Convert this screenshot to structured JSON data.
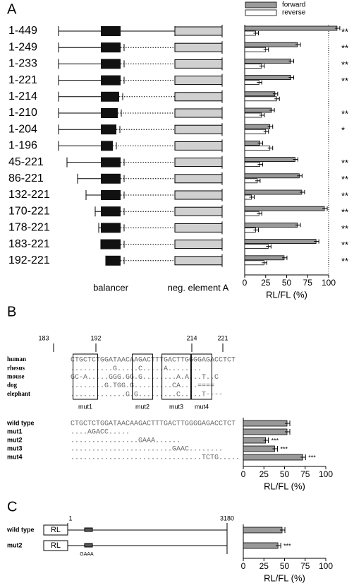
{
  "panels": {
    "A": {
      "letter": "A",
      "balancer": "balancer",
      "element": "neg. element A"
    },
    "B": {
      "letter": "B",
      "positions": [
        "183",
        "192",
        "214",
        "221"
      ],
      "alignment": [
        {
          "species": "human",
          "seq": "CTGCTCTGGATAACAAGACTTTGACTTGGGGAGACCTCT"
        },
        {
          "species": "rhesus",
          "seq": "..........G.....C.....A........"
        },
        {
          "species": "mouse",
          "seq": "GC-A.....GGG.GG.G........A.A...T..C"
        },
        {
          "species": "dog",
          "seq": "........G.TGG.G.........CA....===="
        },
        {
          "species": "elephant",
          "seq": ".............G.G.........C.....T----"
        }
      ],
      "boxes": [
        "mut1",
        "mut2",
        "mut3",
        "mut4"
      ],
      "mutants": [
        {
          "name": "wild type",
          "seq": "CTGCTCTGGATAACAAGACTTTGACTTGGGGAGACCTCT"
        },
        {
          "name": "mut1",
          "seq": "....AGACC....."
        },
        {
          "name": "mut2",
          "seq": "................GAAA......"
        },
        {
          "name": "mut3",
          "seq": "........................GAAC........"
        },
        {
          "name": "mut4",
          "seq": "...............................TCTG....."
        }
      ]
    },
    "C": {
      "letter": "C",
      "rl": "RL",
      "start": "1",
      "end": "3180",
      "mutation": "GAAA",
      "rows": [
        "wild type",
        "mut2"
      ]
    }
  },
  "chart_data": [
    {
      "type": "bar",
      "orientation": "horizontal",
      "categories": [
        "1-449",
        "1-249",
        "1-233",
        "1-221",
        "1-214",
        "1-210",
        "1-204",
        "1-196",
        "45-221",
        "86-221",
        "132-221",
        "170-221",
        "178-221",
        "183-221",
        "192-221"
      ],
      "series": [
        {
          "name": "forward",
          "color": "#999999",
          "values": [
            110,
            63,
            55,
            55,
            36,
            32,
            30,
            18,
            60,
            65,
            68,
            95,
            63,
            85,
            47
          ]
        },
        {
          "name": "reverse",
          "color": "#ffffff",
          "values": [
            13,
            25,
            20,
            17,
            38,
            20,
            25,
            30,
            18,
            15,
            8,
            17,
            13,
            28,
            23
          ]
        }
      ],
      "significance": [
        "**",
        "**",
        "**",
        "**",
        null,
        "**",
        "*",
        null,
        "**",
        "**",
        "**",
        "**",
        "**",
        "**",
        "**"
      ],
      "xlim": [
        0,
        100
      ],
      "xticks": [
        0,
        25,
        50,
        75,
        100
      ],
      "xlabel": "RL/FL (%)"
    },
    {
      "type": "bar",
      "orientation": "horizontal",
      "categories": [
        "wild type",
        "mut1",
        "mut2",
        "mut3",
        "mut4"
      ],
      "values": [
        53,
        53,
        27,
        38,
        72
      ],
      "color": "#999999",
      "significance": [
        null,
        null,
        "***",
        "***",
        "***"
      ],
      "xlim": [
        0,
        100
      ],
      "xticks": [
        0,
        25,
        50,
        75,
        100
      ],
      "xlabel": "RL/FL (%)"
    },
    {
      "type": "bar",
      "orientation": "horizontal",
      "categories": [
        "wild type",
        "mut2"
      ],
      "values": [
        47,
        42
      ],
      "color": "#999999",
      "significance": [
        null,
        "***"
      ],
      "xlim": [
        0,
        100
      ],
      "xticks": [
        0,
        25,
        50,
        75,
        100
      ],
      "xlabel": "RL/FL (%)"
    }
  ]
}
